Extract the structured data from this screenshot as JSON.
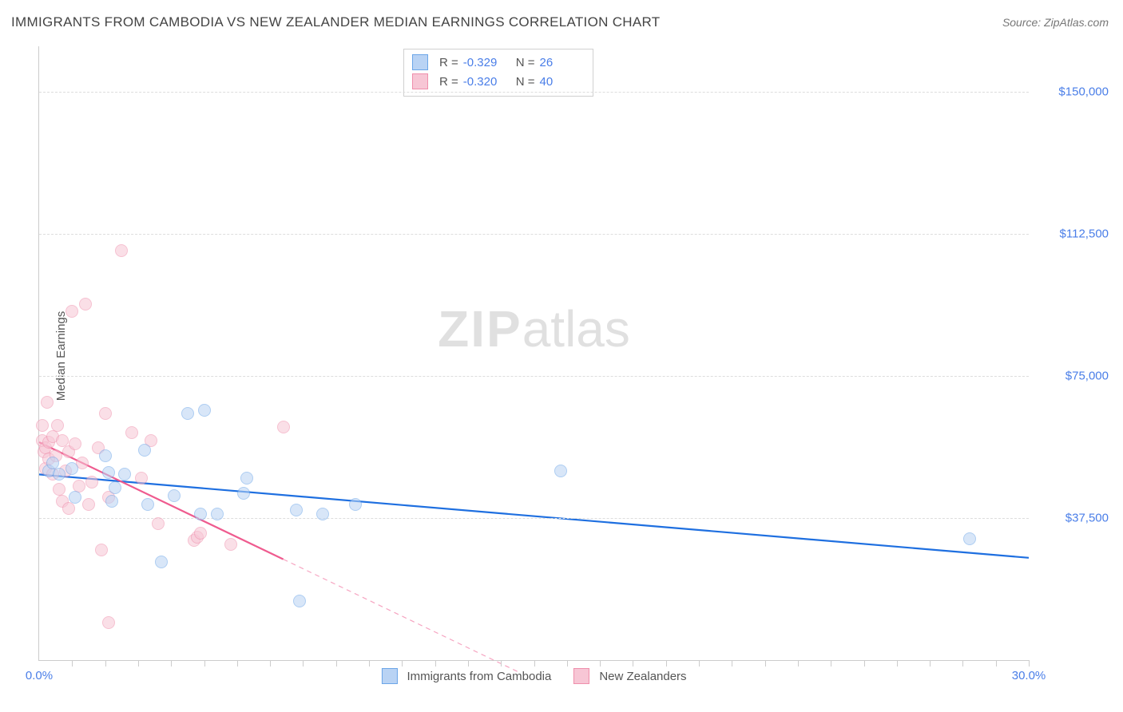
{
  "title": "IMMIGRANTS FROM CAMBODIA VS NEW ZEALANDER MEDIAN EARNINGS CORRELATION CHART",
  "source": "Source: ZipAtlas.com",
  "watermark_main": "ZIP",
  "watermark_sub": "atlas",
  "ylabel": "Median Earnings",
  "chart": {
    "type": "scatter",
    "xlim": [
      0,
      30
    ],
    "ylim": [
      0,
      162000
    ],
    "y_gridlines": [
      37500,
      75000,
      112500,
      150000
    ],
    "y_tick_labels": [
      "$37,500",
      "$75,000",
      "$112,500",
      "$150,000"
    ],
    "x_ticks": [
      0,
      30
    ],
    "x_tick_labels": [
      "0.0%",
      "30.0%"
    ],
    "x_minor_ticks_n": 30,
    "grid_color": "#dddddd",
    "axis_color": "#cccccc",
    "tick_label_color": "#4a7ee8",
    "background_color": "#ffffff",
    "series": [
      {
        "name": "Immigrants from Cambodia",
        "color_fill": "#b9d3f4",
        "color_stroke": "#6ca6e8",
        "fill_opacity": 0.55,
        "marker_radius": 8,
        "R": "-0.329",
        "N": "26",
        "trend": {
          "x1": 0,
          "y1": 49000,
          "x2": 30,
          "y2": 27000,
          "solid_until_x": 30,
          "stroke": "#1e6fe0",
          "width": 2.2
        },
        "points": [
          [
            0.3,
            50000
          ],
          [
            0.4,
            52000
          ],
          [
            0.6,
            49000
          ],
          [
            1.0,
            50500
          ],
          [
            1.1,
            43000
          ],
          [
            2.0,
            54000
          ],
          [
            2.1,
            49500
          ],
          [
            2.2,
            42000
          ],
          [
            2.3,
            45500
          ],
          [
            2.6,
            49000
          ],
          [
            3.2,
            55500
          ],
          [
            3.3,
            41000
          ],
          [
            3.7,
            26000
          ],
          [
            4.1,
            43500
          ],
          [
            4.5,
            65000
          ],
          [
            4.9,
            38500
          ],
          [
            5.0,
            66000
          ],
          [
            5.4,
            38500
          ],
          [
            6.2,
            44000
          ],
          [
            6.3,
            48000
          ],
          [
            7.8,
            39500
          ],
          [
            7.9,
            15500
          ],
          [
            8.6,
            38500
          ],
          [
            9.6,
            41000
          ],
          [
            15.8,
            50000
          ],
          [
            28.2,
            32000
          ]
        ]
      },
      {
        "name": "New Zealanders",
        "color_fill": "#f7c6d5",
        "color_stroke": "#ef8fac",
        "fill_opacity": 0.55,
        "marker_radius": 8,
        "R": "-0.320",
        "N": "40",
        "trend": {
          "x1": 0,
          "y1": 57500,
          "x2": 14.5,
          "y2": -3000,
          "solid_until_x": 7.4,
          "stroke": "#ef5b8f",
          "width": 2.2,
          "dash": "6 5"
        },
        "points": [
          [
            0.1,
            62000
          ],
          [
            0.1,
            58000
          ],
          [
            0.15,
            55000
          ],
          [
            0.2,
            56000
          ],
          [
            0.2,
            50500
          ],
          [
            0.25,
            68000
          ],
          [
            0.3,
            57500
          ],
          [
            0.3,
            53000
          ],
          [
            0.4,
            59000
          ],
          [
            0.4,
            49000
          ],
          [
            0.5,
            54000
          ],
          [
            0.55,
            62000
          ],
          [
            0.6,
            45000
          ],
          [
            0.7,
            58000
          ],
          [
            0.7,
            42000
          ],
          [
            0.8,
            50000
          ],
          [
            0.9,
            55000
          ],
          [
            0.9,
            40000
          ],
          [
            1.0,
            92000
          ],
          [
            1.1,
            57000
          ],
          [
            1.2,
            46000
          ],
          [
            1.3,
            52000
          ],
          [
            1.4,
            94000
          ],
          [
            1.5,
            41000
          ],
          [
            1.6,
            47000
          ],
          [
            1.8,
            56000
          ],
          [
            1.9,
            29000
          ],
          [
            2.0,
            65000
          ],
          [
            2.1,
            43000
          ],
          [
            2.1,
            10000
          ],
          [
            2.5,
            108000
          ],
          [
            2.8,
            60000
          ],
          [
            3.1,
            48000
          ],
          [
            3.4,
            58000
          ],
          [
            3.6,
            36000
          ],
          [
            4.7,
            31500
          ],
          [
            4.8,
            32500
          ],
          [
            4.9,
            33500
          ],
          [
            5.8,
            30500
          ],
          [
            7.4,
            61500
          ]
        ]
      }
    ],
    "legend": [
      {
        "label": "Immigrants from Cambodia",
        "fill": "#b9d3f4",
        "stroke": "#6ca6e8"
      },
      {
        "label": "New Zealanders",
        "fill": "#f7c6d5",
        "stroke": "#ef8fac"
      }
    ]
  }
}
